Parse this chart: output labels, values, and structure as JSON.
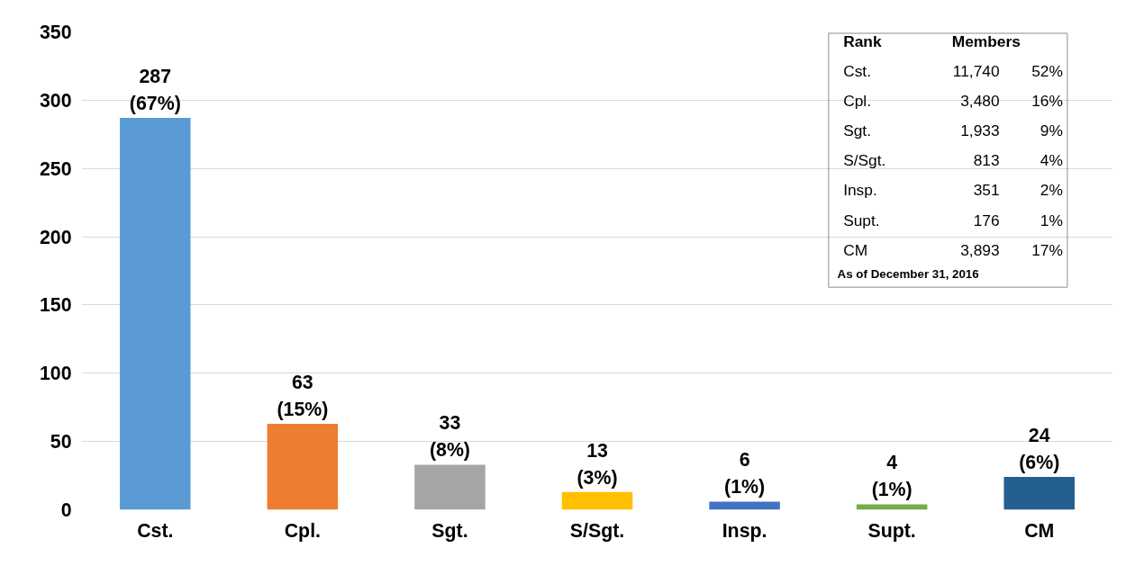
{
  "chart_data": {
    "type": "bar",
    "categories": [
      "Cst.",
      "Cpl.",
      "Sgt.",
      "S/Sgt.",
      "Insp.",
      "Supt.",
      "CM"
    ],
    "values": [
      287,
      63,
      33,
      13,
      6,
      4,
      24
    ],
    "colors": [
      "#5b9bd5",
      "#ed7d31",
      "#a5a5a5",
      "#ffc000",
      "#4472c4",
      "#70ad47",
      "#255e91"
    ],
    "value_labels": [
      "287\n(67%)",
      "63\n(15%)",
      "33\n(8%)",
      "13\n(3%)",
      "6\n(1%)",
      "4\n(1%)",
      "24\n(6%)"
    ],
    "ylim": [
      0,
      350
    ],
    "yticks": [
      0,
      50,
      100,
      150,
      200,
      250,
      300,
      350
    ],
    "grid": "y",
    "annotations": [
      "Rank",
      "Members",
      "Cst.",
      "11,740",
      "52%",
      "Cpl.",
      "3,480",
      "16%",
      "Sgt.",
      "1,933",
      "9%",
      "S/Sgt.",
      "813",
      "4%",
      "Insp.",
      "351",
      "2%",
      "Supt.",
      "176",
      "1%",
      "CM",
      "3,893",
      "17%",
      "As of December 31, 2016"
    ]
  }
}
